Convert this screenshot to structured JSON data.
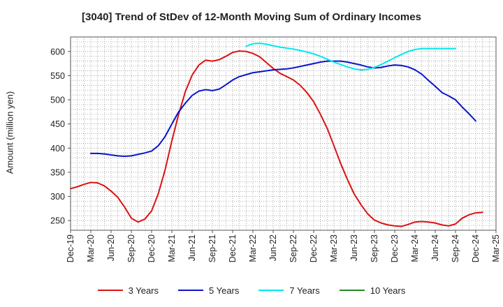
{
  "chart_data": {
    "type": "line",
    "title": "[3040]  Trend of StDev of 12-Month Moving Sum of Ordinary Incomes",
    "ylabel": "Amount (million yen)",
    "xlabel": "",
    "ylim": [
      230,
      630
    ],
    "yticks": [
      250,
      300,
      350,
      400,
      450,
      500,
      550,
      600
    ],
    "x_ticks": [
      "Dec-19",
      "Mar-20",
      "Jun-20",
      "Sep-20",
      "Dec-20",
      "Mar-21",
      "Jun-21",
      "Sep-21",
      "Dec-21",
      "Mar-22",
      "Jun-22",
      "Sep-22",
      "Dec-22",
      "Mar-23",
      "Jun-23",
      "Sep-23",
      "Dec-23",
      "Mar-24",
      "Jun-24",
      "Sep-24",
      "Dec-24",
      "Mar-25"
    ],
    "grid": true,
    "legend_position": "bottom",
    "series": [
      {
        "name": "3 Years",
        "color": "#dd1111",
        "points": [
          [
            0,
            316
          ],
          [
            1,
            320
          ],
          [
            2,
            325
          ],
          [
            3,
            329
          ],
          [
            4,
            328
          ],
          [
            5,
            322
          ],
          [
            6,
            311
          ],
          [
            7,
            298
          ],
          [
            8,
            278
          ],
          [
            9,
            255
          ],
          [
            10,
            247
          ],
          [
            11,
            253
          ],
          [
            12,
            270
          ],
          [
            13,
            306
          ],
          [
            14,
            355
          ],
          [
            15,
            415
          ],
          [
            16,
            470
          ],
          [
            17,
            517
          ],
          [
            18,
            551
          ],
          [
            19,
            572
          ],
          [
            20,
            582
          ],
          [
            21,
            580
          ],
          [
            22,
            583
          ],
          [
            23,
            590
          ],
          [
            24,
            598
          ],
          [
            25,
            601
          ],
          [
            26,
            600
          ],
          [
            27,
            596
          ],
          [
            28,
            589
          ],
          [
            29,
            577
          ],
          [
            30,
            565
          ],
          [
            31,
            555
          ],
          [
            32,
            548
          ],
          [
            33,
            541
          ],
          [
            34,
            530
          ],
          [
            35,
            515
          ],
          [
            36,
            496
          ],
          [
            37,
            470
          ],
          [
            38,
            441
          ],
          [
            39,
            405
          ],
          [
            40,
            368
          ],
          [
            41,
            335
          ],
          [
            42,
            305
          ],
          [
            43,
            283
          ],
          [
            44,
            264
          ],
          [
            45,
            251
          ],
          [
            46,
            245
          ],
          [
            47,
            241
          ],
          [
            48,
            239
          ],
          [
            49,
            238
          ],
          [
            50,
            242
          ],
          [
            51,
            247
          ],
          [
            52,
            248
          ],
          [
            53,
            247
          ],
          [
            54,
            245
          ],
          [
            55,
            241
          ],
          [
            56,
            239
          ],
          [
            57,
            243
          ],
          [
            58,
            255
          ],
          [
            59,
            262
          ],
          [
            60,
            266
          ],
          [
            61,
            267
          ]
        ]
      },
      {
        "name": "5 Years",
        "color": "#0a14cc",
        "points": [
          [
            3,
            389
          ],
          [
            4,
            389
          ],
          [
            5,
            388
          ],
          [
            6,
            386
          ],
          [
            7,
            384
          ],
          [
            8,
            383
          ],
          [
            9,
            384
          ],
          [
            10,
            387
          ],
          [
            11,
            390
          ],
          [
            12,
            394
          ],
          [
            13,
            405
          ],
          [
            14,
            424
          ],
          [
            15,
            450
          ],
          [
            16,
            475
          ],
          [
            17,
            493
          ],
          [
            18,
            509
          ],
          [
            19,
            518
          ],
          [
            20,
            521
          ],
          [
            21,
            519
          ],
          [
            22,
            522
          ],
          [
            23,
            531
          ],
          [
            24,
            541
          ],
          [
            25,
            548
          ],
          [
            26,
            552
          ],
          [
            27,
            556
          ],
          [
            28,
            558
          ],
          [
            29,
            560
          ],
          [
            30,
            562
          ],
          [
            31,
            563
          ],
          [
            32,
            564
          ],
          [
            33,
            566
          ],
          [
            34,
            569
          ],
          [
            35,
            572
          ],
          [
            36,
            575
          ],
          [
            37,
            578
          ],
          [
            38,
            580
          ],
          [
            39,
            580
          ],
          [
            40,
            580
          ],
          [
            41,
            578
          ],
          [
            42,
            575
          ],
          [
            43,
            572
          ],
          [
            44,
            568
          ],
          [
            45,
            566
          ],
          [
            46,
            567
          ],
          [
            47,
            570
          ],
          [
            48,
            572
          ],
          [
            49,
            571
          ],
          [
            50,
            568
          ],
          [
            51,
            562
          ],
          [
            52,
            553
          ],
          [
            53,
            540
          ],
          [
            54,
            528
          ],
          [
            55,
            515
          ],
          [
            56,
            508
          ],
          [
            57,
            500
          ],
          [
            58,
            485
          ],
          [
            59,
            471
          ],
          [
            60,
            456
          ]
        ]
      },
      {
        "name": "7 Years",
        "color": "#00e8ee",
        "points": [
          [
            26,
            611
          ],
          [
            27,
            616
          ],
          [
            28,
            617
          ],
          [
            29,
            615
          ],
          [
            30,
            612
          ],
          [
            31,
            609
          ],
          [
            32,
            607
          ],
          [
            33,
            605
          ],
          [
            34,
            602
          ],
          [
            35,
            599
          ],
          [
            36,
            595
          ],
          [
            37,
            590
          ],
          [
            38,
            584
          ],
          [
            39,
            578
          ],
          [
            40,
            573
          ],
          [
            41,
            568
          ],
          [
            42,
            564
          ],
          [
            43,
            562
          ],
          [
            44,
            563
          ],
          [
            45,
            567
          ],
          [
            46,
            573
          ],
          [
            47,
            580
          ],
          [
            48,
            587
          ],
          [
            49,
            594
          ],
          [
            50,
            600
          ],
          [
            51,
            604
          ],
          [
            52,
            606
          ],
          [
            53,
            606
          ],
          [
            54,
            606
          ],
          [
            55,
            606
          ],
          [
            56,
            606
          ],
          [
            57,
            606
          ]
        ]
      },
      {
        "name": "10 Years",
        "color": "#228b22",
        "points": []
      }
    ]
  }
}
